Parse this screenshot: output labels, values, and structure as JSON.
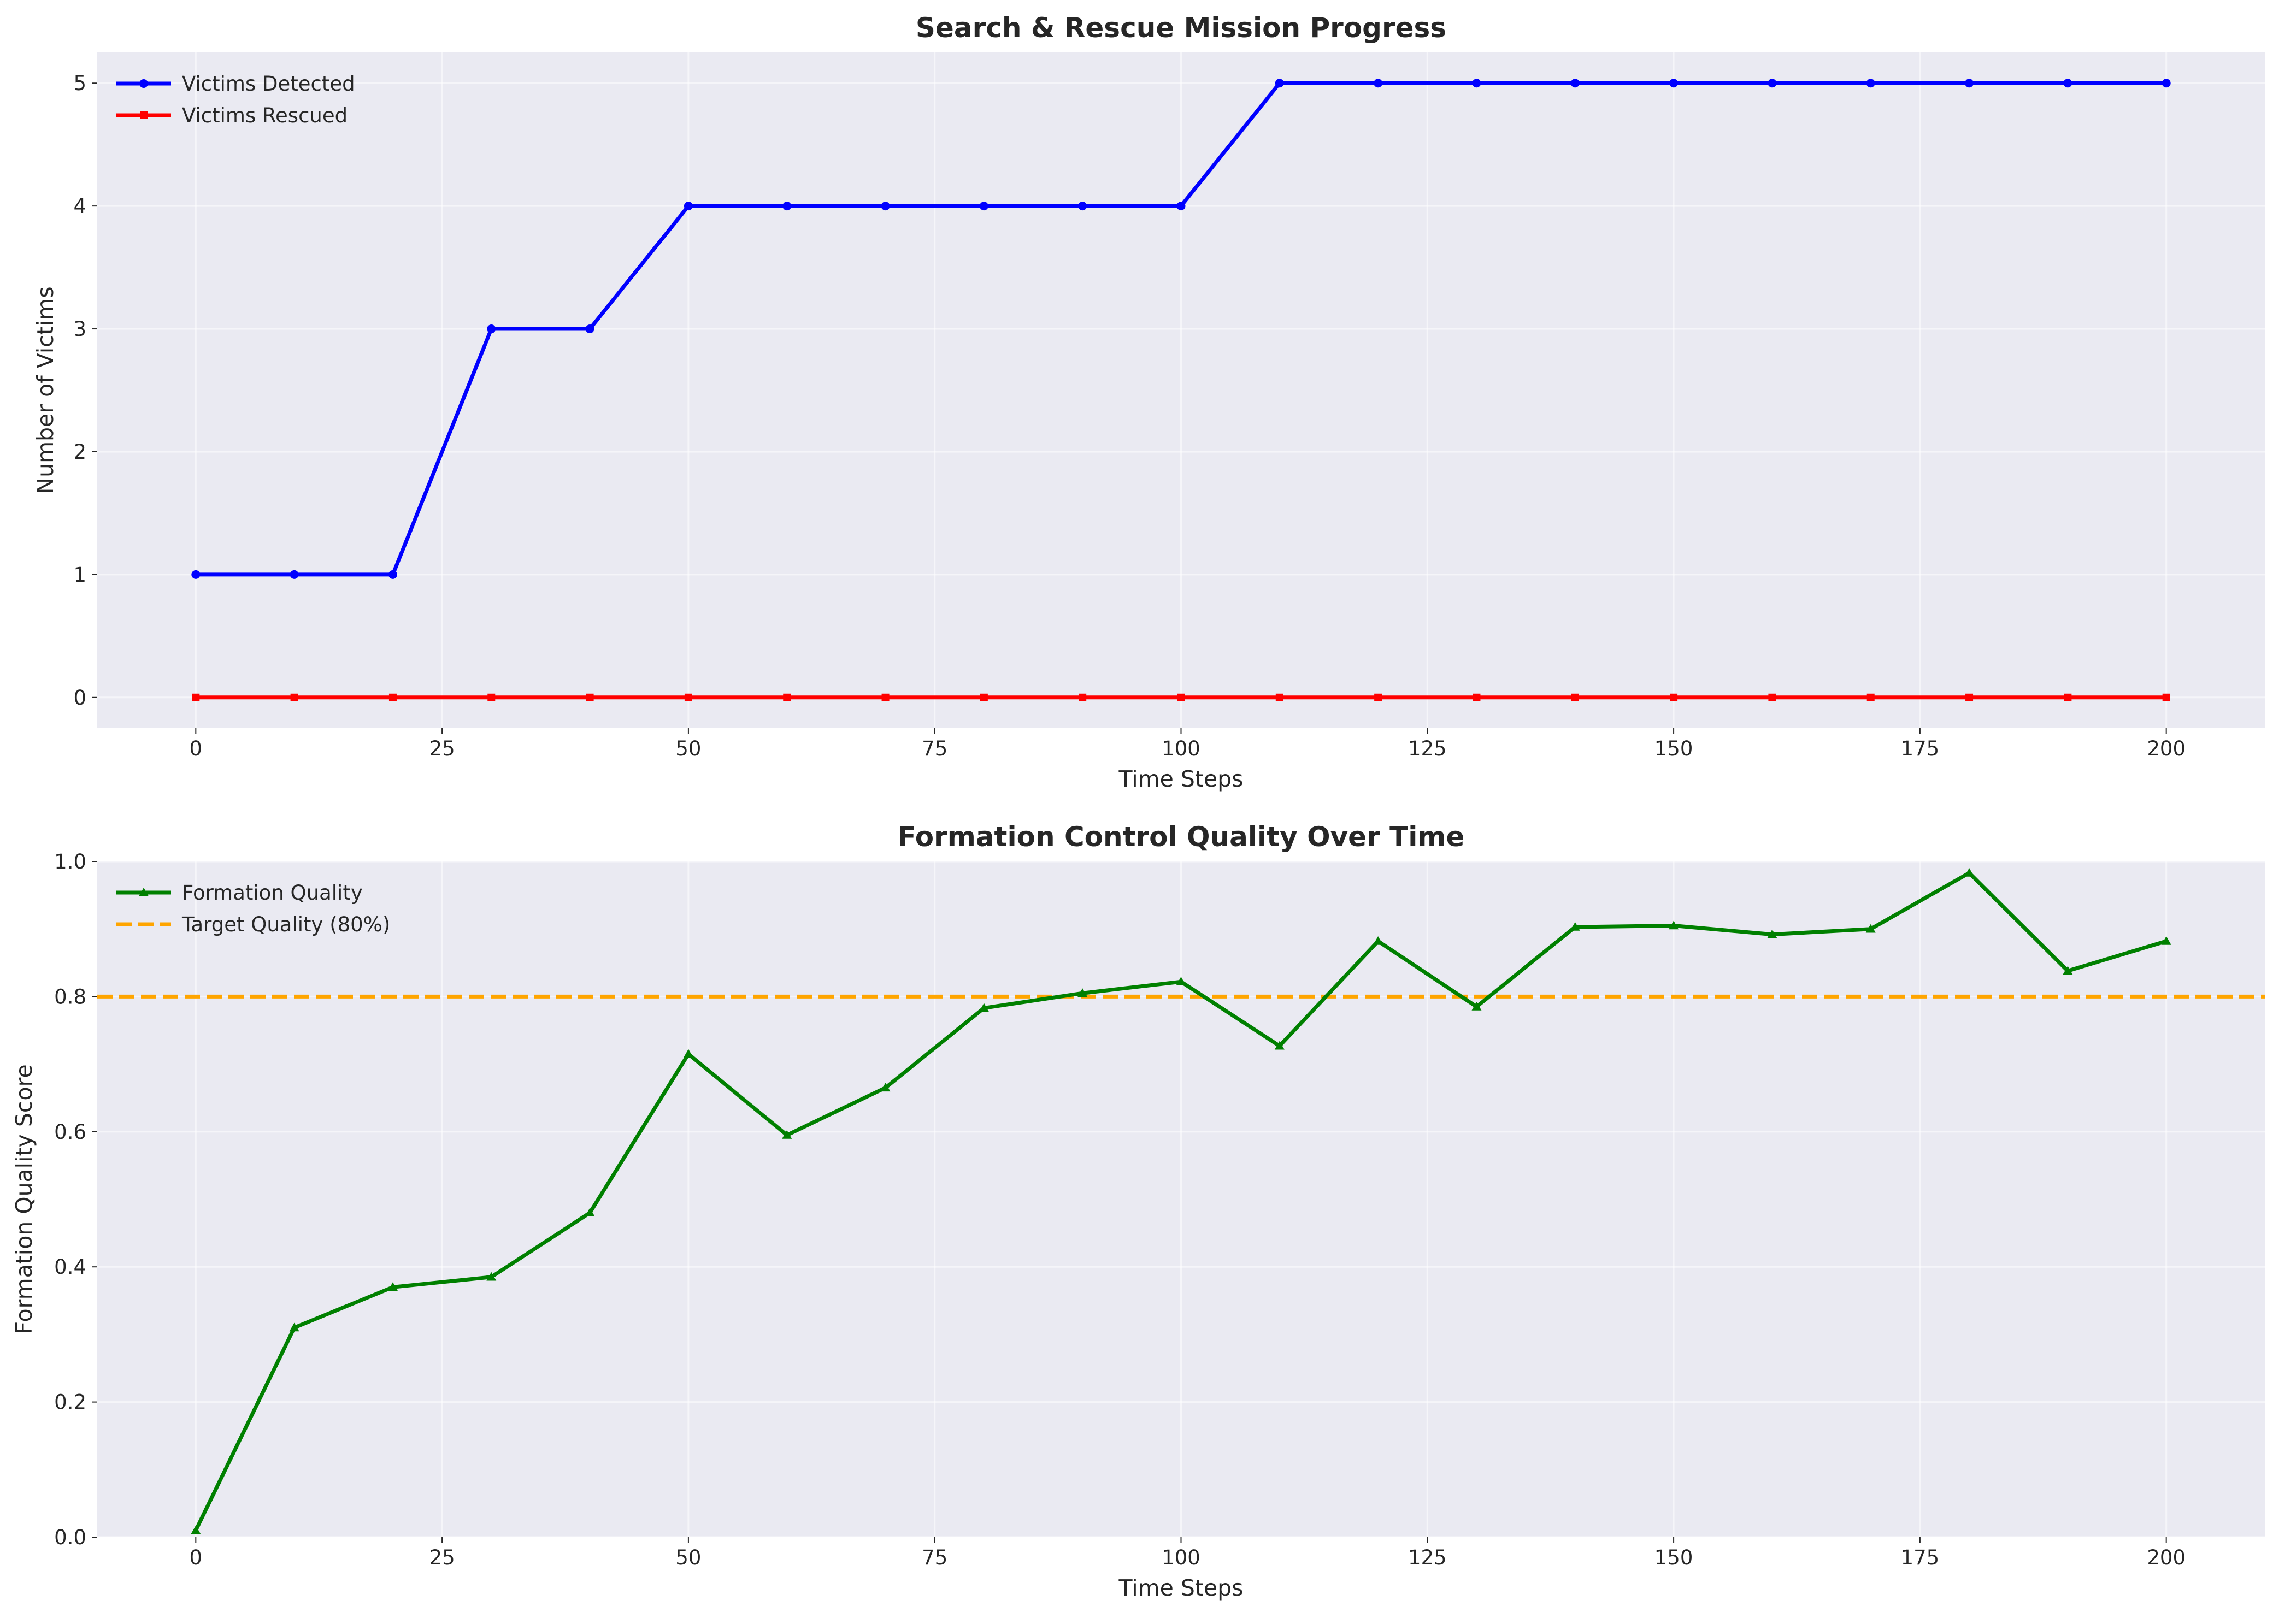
{
  "chart_data": [
    {
      "type": "line",
      "title": "Search & Rescue Mission Progress",
      "xlabel": "Time Steps",
      "ylabel": "Number of Victims",
      "xlim": [
        -10,
        210
      ],
      "ylim": [
        -0.25,
        5.25
      ],
      "xticks": [
        0,
        25,
        50,
        75,
        100,
        125,
        150,
        175,
        200
      ],
      "yticks": [
        0,
        1,
        2,
        3,
        4,
        5
      ],
      "ytick_decimals": 0,
      "grid": true,
      "legend_position": "top-left",
      "x": [
        0,
        10,
        20,
        30,
        40,
        50,
        60,
        70,
        80,
        90,
        100,
        110,
        120,
        130,
        140,
        150,
        160,
        170,
        180,
        190,
        200
      ],
      "series": [
        {
          "name": "Victims Detected",
          "color": "#0000ff",
          "marker": "circle",
          "dashed": false,
          "values": [
            1,
            1,
            1,
            3,
            3,
            4,
            4,
            4,
            4,
            4,
            4,
            5,
            5,
            5,
            5,
            5,
            5,
            5,
            5,
            5,
            5
          ]
        },
        {
          "name": "Victims Rescued",
          "color": "#ff0000",
          "marker": "square",
          "dashed": false,
          "values": [
            0,
            0,
            0,
            0,
            0,
            0,
            0,
            0,
            0,
            0,
            0,
            0,
            0,
            0,
            0,
            0,
            0,
            0,
            0,
            0,
            0
          ]
        }
      ],
      "hlines": []
    },
    {
      "type": "line",
      "title": "Formation Control Quality Over Time",
      "xlabel": "Time Steps",
      "ylabel": "Formation Quality Score",
      "xlim": [
        -10,
        210
      ],
      "ylim": [
        0,
        1.0
      ],
      "xticks": [
        0,
        25,
        50,
        75,
        100,
        125,
        150,
        175,
        200
      ],
      "yticks": [
        0.0,
        0.2,
        0.4,
        0.6,
        0.8,
        1.0
      ],
      "ytick_decimals": 1,
      "grid": true,
      "legend_position": "top-left",
      "x": [
        0,
        10,
        20,
        30,
        40,
        50,
        60,
        70,
        80,
        90,
        100,
        110,
        120,
        130,
        140,
        150,
        160,
        170,
        180,
        190,
        200
      ],
      "series": [
        {
          "name": "Formation Quality",
          "color": "#008000",
          "marker": "triangle",
          "dashed": false,
          "values": [
            0.01,
            0.31,
            0.37,
            0.385,
            0.48,
            0.715,
            0.595,
            0.665,
            0.783,
            0.805,
            0.822,
            0.727,
            0.882,
            0.785,
            0.903,
            0.905,
            0.892,
            0.9,
            0.983,
            0.838,
            0.882
          ]
        }
      ],
      "hlines": [
        {
          "name": "Target Quality (80%)",
          "y": 0.8,
          "color": "#ffa500",
          "dashed": true
        }
      ]
    }
  ]
}
